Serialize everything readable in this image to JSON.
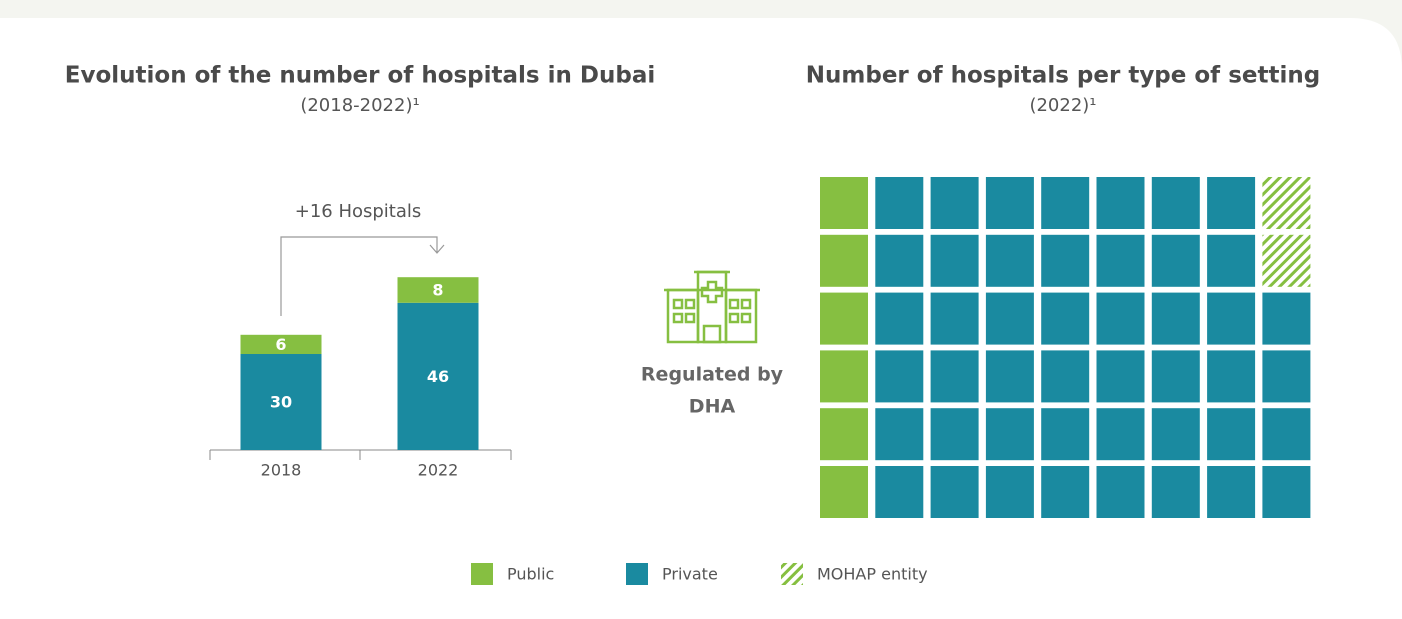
{
  "chart_data": [
    {
      "type": "stacked_bar",
      "title": "Evolution of the number of hospitals in Dubai",
      "subtitle": "(2018-2022)¹",
      "annotation": "+16 Hospitals",
      "categories": [
        "2018",
        "2022"
      ],
      "series": [
        {
          "color": "#1a8aa0",
          "values": [
            30,
            46
          ]
        },
        {
          "color": "#86bf41",
          "values": [
            6,
            8
          ]
        }
      ]
    },
    {
      "type": "waffle",
      "title": "Number of hospitals per type of setting",
      "subtitle": "(2022)¹",
      "annotation": [
        "Regulated by",
        "DHA"
      ],
      "rows": 6,
      "columns": 9,
      "series": [
        {
          "name": "Public",
          "color": "#86bf41",
          "values": [
            6
          ]
        },
        {
          "name": "Private",
          "color": "#1a8aa0",
          "values": [
            46
          ]
        },
        {
          "name": "MOHAP entity",
          "color": "#86bf41",
          "hatched": true,
          "values": [
            2
          ]
        }
      ]
    }
  ]
}
